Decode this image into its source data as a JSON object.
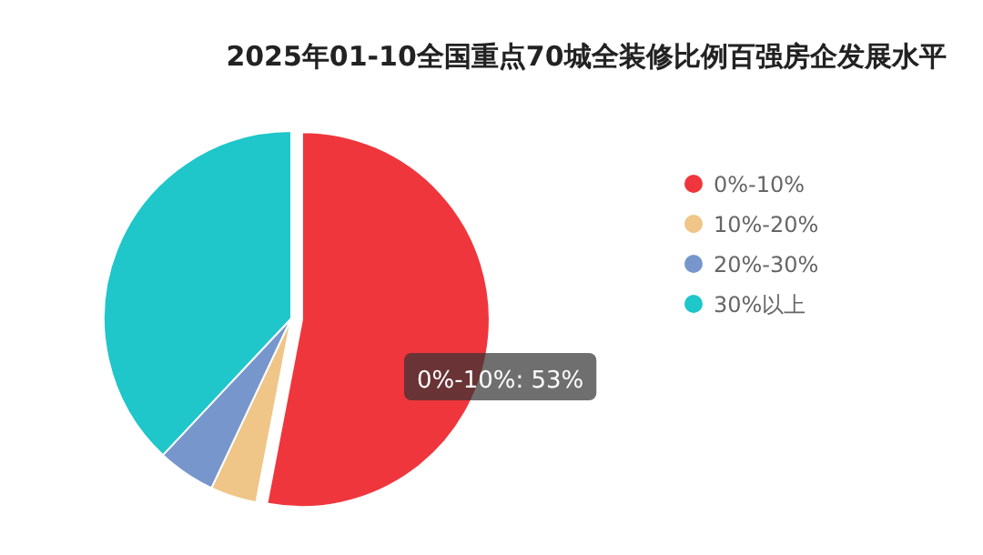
{
  "chart_data": {
    "type": "pie",
    "title": "2025年01-10全国重点70城全装修比例百强房企发展水平",
    "categories": [
      "0%-10%",
      "10%-20%",
      "20%-30%",
      "30%以上"
    ],
    "values": [
      53,
      4,
      5,
      38
    ],
    "colors": [
      "#ef363c",
      "#efc588",
      "#7796cc",
      "#1fc6ca"
    ],
    "value_labels": [
      "0%-10%: 53%",
      null,
      null,
      null
    ],
    "legend": "right"
  }
}
